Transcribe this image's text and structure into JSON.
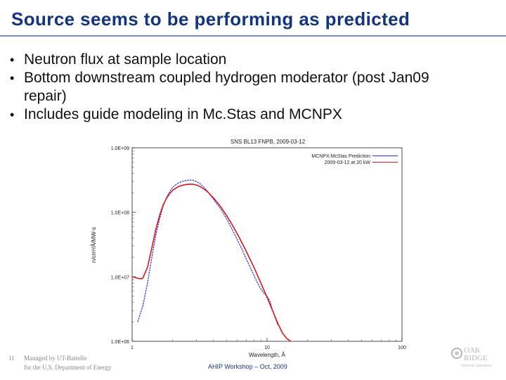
{
  "slide": {
    "title": "Source seems to be performing as predicted",
    "bullets": [
      "Neutron flux at sample location",
      "Bottom downstream coupled hydrogen moderator (post Jan09 repair)",
      "Includes guide modeling in Mc.Stas and MCNPX"
    ],
    "page_number": "11",
    "footer_line1": "Managed by UT-Battelle",
    "footer_line2": "for the U.S. Department of Energy",
    "footer_center": "AHIP Workshop – Oct, 2009",
    "logo_text_1": "OAK",
    "logo_text_2": "RIDGE",
    "logo_text_3": "National Laboratory"
  },
  "colors": {
    "title": "#13357f",
    "series_prediction": "#1f2fd6",
    "series_measured": "#e0141c"
  },
  "chart_data": {
    "type": "line",
    "title": "SNS BL13 FNPB, 2009-03-12",
    "xlabel": "Wavelength, Å",
    "ylabel": "n/cm²/Å/MW-s",
    "xscale": "log",
    "yscale": "log",
    "xlim": [
      1,
      100
    ],
    "ylim": [
      1000000.0,
      1000000000.0
    ],
    "x_ticks": [
      "1",
      "10",
      "100"
    ],
    "y_ticks": [
      "1.0E+09",
      "1.0E+08",
      "1.0E+07",
      "1.0E+06"
    ],
    "y_tick_values": [
      1000000000.0,
      100000000.0,
      10000000.0,
      1000000.0
    ],
    "x_tick_values": [
      1,
      10,
      100
    ],
    "legend_position": "top-right",
    "series": [
      {
        "name": "MCNPX:McStas Prediction",
        "color": "#1f2fd6",
        "x": [
          1.1,
          1.2,
          1.3,
          1.4,
          1.5,
          1.6,
          1.7,
          1.8,
          1.9,
          2.0,
          2.2,
          2.4,
          2.6,
          2.8,
          3.0,
          3.2,
          3.4,
          3.6,
          3.8,
          4.0,
          4.5,
          5.0,
          5.5,
          6.0,
          6.5,
          7.0,
          7.5,
          8.0,
          8.5,
          9.0,
          9.5,
          10.0,
          10.5,
          11.0,
          11.5,
          12.0
        ],
        "y": [
          2000000.0,
          3500000.0,
          8000000.0,
          20000000.0,
          45000000.0,
          80000000.0,
          125000000.0,
          170000000.0,
          210000000.0,
          245000000.0,
          285000000.0,
          305000000.0,
          315000000.0,
          315000000.0,
          300000000.0,
          275000000.0,
          245000000.0,
          215000000.0,
          185000000.0,
          160000000.0,
          115000000.0,
          80000000.0,
          55000000.0,
          38000000.0,
          27000000.0,
          19000000.0,
          14000000.0,
          10500000.0,
          8000000.0,
          6500000.0,
          5500000.0,
          5000000.0,
          4200000.0,
          3000000.0,
          2300000.0,
          1800000.0
        ]
      },
      {
        "name": "2009-03-12 at 20 kW",
        "color": "#e0141c",
        "x": [
          1.0,
          1.05,
          1.1,
          1.15,
          1.2,
          1.3,
          1.4,
          1.5,
          1.6,
          1.7,
          1.8,
          1.9,
          2.0,
          2.2,
          2.4,
          2.6,
          2.8,
          3.0,
          3.2,
          3.4,
          3.6,
          3.8,
          4.0,
          4.5,
          5.0,
          5.5,
          6.0,
          7.0,
          8.0,
          9.0,
          10.0,
          11.0,
          12.0,
          13.0,
          14.0,
          15.0
        ],
        "y": [
          10000000.0,
          9800000.0,
          9500000.0,
          9300000.0,
          9500000.0,
          14000000.0,
          28000000.0,
          55000000.0,
          90000000.0,
          130000000.0,
          165000000.0,
          195000000.0,
          220000000.0,
          250000000.0,
          265000000.0,
          272000000.0,
          272000000.0,
          265000000.0,
          250000000.0,
          230000000.0,
          210000000.0,
          188000000.0,
          168000000.0,
          125000000.0,
          90000000.0,
          65000000.0,
          47000000.0,
          25000000.0,
          14000000.0,
          8000000.0,
          4800000.0,
          3000000.0,
          1900000.0,
          1350000.0,
          1100000.0,
          1000000.0
        ]
      }
    ]
  }
}
